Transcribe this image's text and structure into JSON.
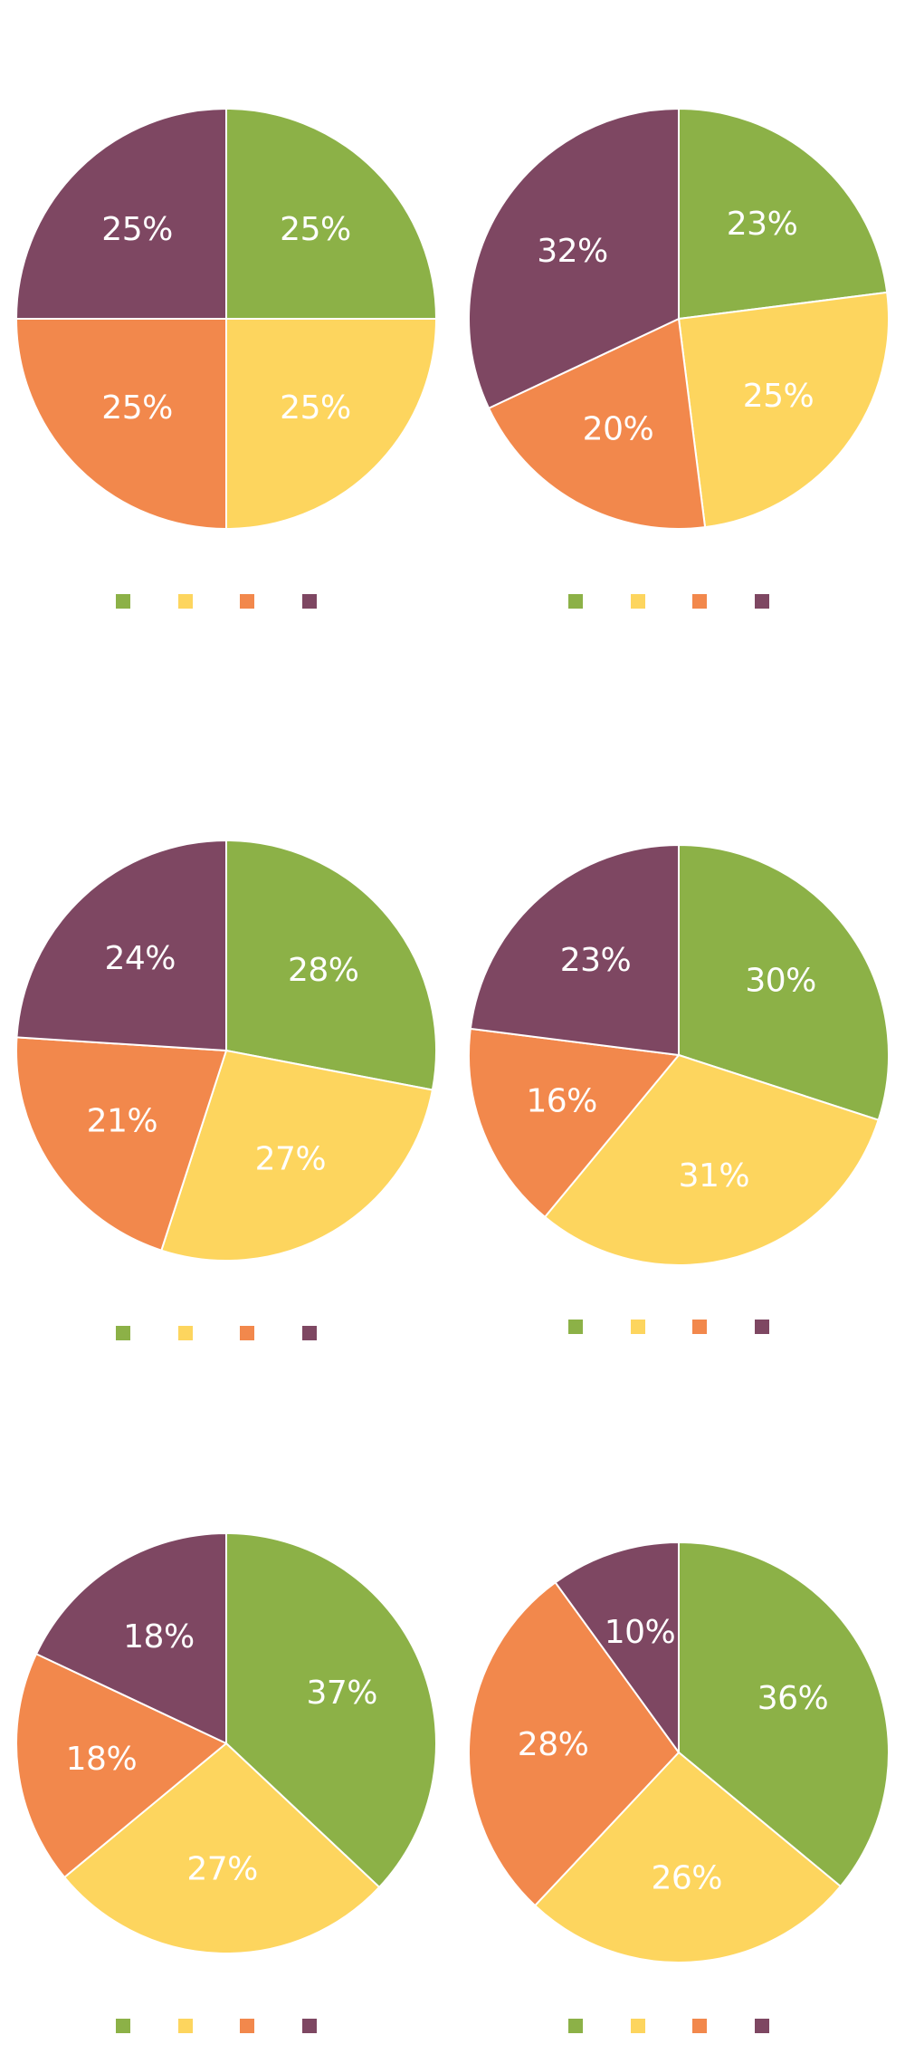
{
  "colors": {
    "slice_1": "#8cb147",
    "slice_2": "#fdd55e",
    "slice_3": "#f2884c",
    "slice_4": "#7e4762",
    "separator": "#ffffff",
    "label_text": "#ffffff"
  },
  "chart_data": [
    {
      "type": "pie",
      "values": [
        25,
        25,
        25,
        25
      ],
      "labels": [
        "25%",
        "25%",
        "25%",
        "25%"
      ],
      "legend": "bottom"
    },
    {
      "type": "pie",
      "values": [
        23,
        25,
        20,
        32
      ],
      "labels": [
        "23%",
        "25%",
        "20%",
        "32%"
      ],
      "legend": "bottom"
    },
    {
      "type": "pie",
      "values": [
        28,
        27,
        21,
        24
      ],
      "labels": [
        "28%",
        "27%",
        "21%",
        "24%"
      ],
      "legend": "bottom"
    },
    {
      "type": "pie",
      "values": [
        30,
        31,
        16,
        23
      ],
      "labels": [
        "30%",
        "31%",
        "16%",
        "23%"
      ],
      "legend": "bottom"
    },
    {
      "type": "pie",
      "values": [
        37,
        27,
        18,
        18
      ],
      "labels": [
        "37%",
        "27%",
        "18%",
        "18%"
      ],
      "legend": "bottom"
    },
    {
      "type": "pie",
      "values": [
        36,
        26,
        28,
        10
      ],
      "labels": [
        "36%",
        "26%",
        "28%",
        "10%"
      ],
      "legend": "bottom"
    }
  ]
}
